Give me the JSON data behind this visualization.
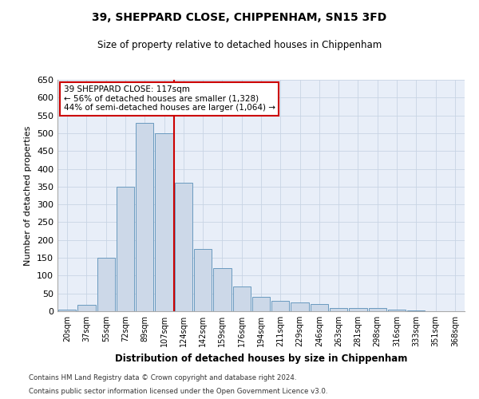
{
  "title": "39, SHEPPARD CLOSE, CHIPPENHAM, SN15 3FD",
  "subtitle": "Size of property relative to detached houses in Chippenham",
  "xlabel": "Distribution of detached houses by size in Chippenham",
  "ylabel": "Number of detached properties",
  "categories": [
    "20sqm",
    "37sqm",
    "55sqm",
    "72sqm",
    "89sqm",
    "107sqm",
    "124sqm",
    "142sqm",
    "159sqm",
    "176sqm",
    "194sqm",
    "211sqm",
    "229sqm",
    "246sqm",
    "263sqm",
    "281sqm",
    "298sqm",
    "316sqm",
    "333sqm",
    "351sqm",
    "368sqm"
  ],
  "values": [
    5,
    18,
    150,
    350,
    530,
    500,
    360,
    175,
    120,
    70,
    40,
    30,
    25,
    20,
    10,
    10,
    10,
    5,
    3,
    1,
    0
  ],
  "bar_color": "#ccd8e8",
  "bar_edge_color": "#6a9abf",
  "property_line_label": "39 SHEPPARD CLOSE: 117sqm",
  "annotation_smaller": "← 56% of detached houses are smaller (1,328)",
  "annotation_larger": "44% of semi-detached houses are larger (1,064) →",
  "annotation_box_color": "#ffffff",
  "annotation_box_edge": "#cc0000",
  "vline_color": "#cc0000",
  "vline_x": 5.5,
  "ylim": [
    0,
    650
  ],
  "yticks": [
    0,
    50,
    100,
    150,
    200,
    250,
    300,
    350,
    400,
    450,
    500,
    550,
    600,
    650
  ],
  "grid_color": "#c8d4e4",
  "bg_color": "#e8eef8",
  "footer1": "Contains HM Land Registry data © Crown copyright and database right 2024.",
  "footer2": "Contains public sector information licensed under the Open Government Licence v3.0."
}
